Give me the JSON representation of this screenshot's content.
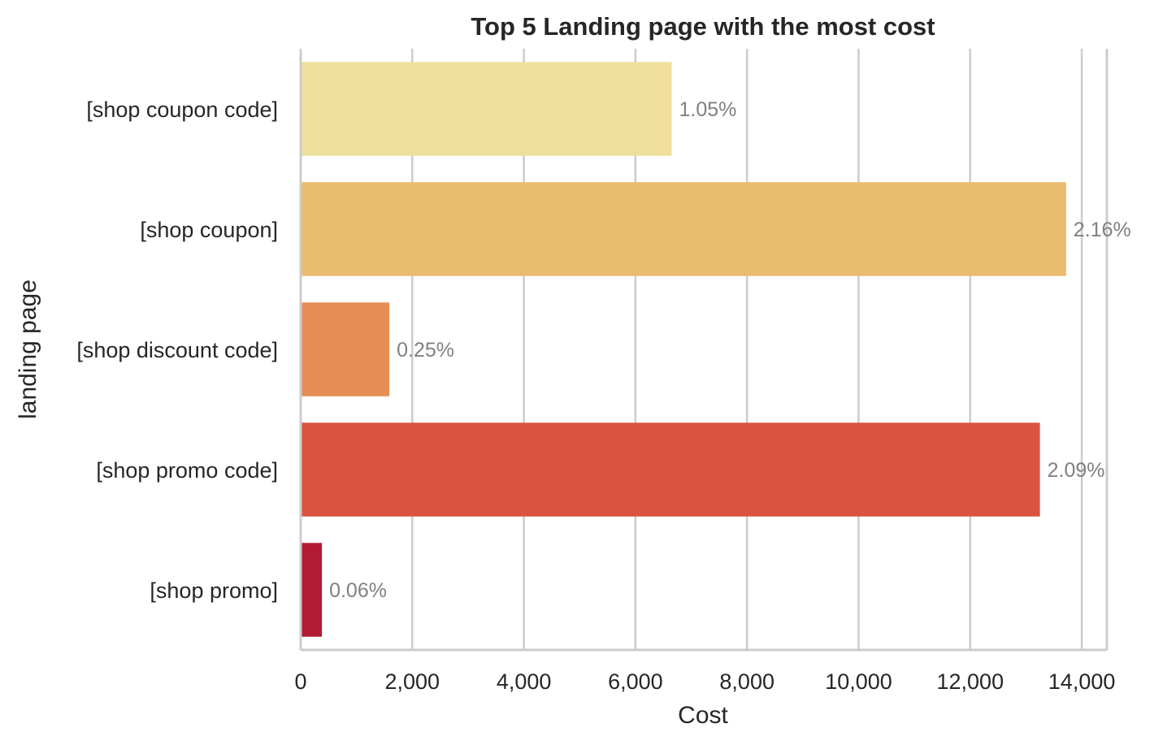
{
  "chart_data": {
    "type": "bar",
    "orientation": "horizontal",
    "title": "Top 5 Landing page with the most cost",
    "xlabel": "Cost",
    "ylabel": "landing page",
    "categories": [
      "[shop coupon code]",
      "[shop coupon]",
      "[shop discount code]",
      "[shop promo code]",
      "[shop promo]"
    ],
    "values": [
      6650,
      13720,
      1590,
      13250,
      380
    ],
    "data_labels": [
      "1.05%",
      "2.16%",
      "0.25%",
      "2.09%",
      "0.06%"
    ],
    "colors": [
      "#f0df9c",
      "#e9bb6e",
      "#e68f55",
      "#db5241",
      "#b31b33"
    ],
    "xlim": [
      0,
      14450
    ],
    "xticks": [
      0,
      2000,
      4000,
      6000,
      8000,
      10000,
      12000,
      14000
    ],
    "xtick_labels": [
      "0",
      "2,000",
      "4,000",
      "6,000",
      "8,000",
      "10,000",
      "12,000",
      "14,000"
    ],
    "grid": true,
    "grid_axis": "x",
    "legend": "none"
  }
}
